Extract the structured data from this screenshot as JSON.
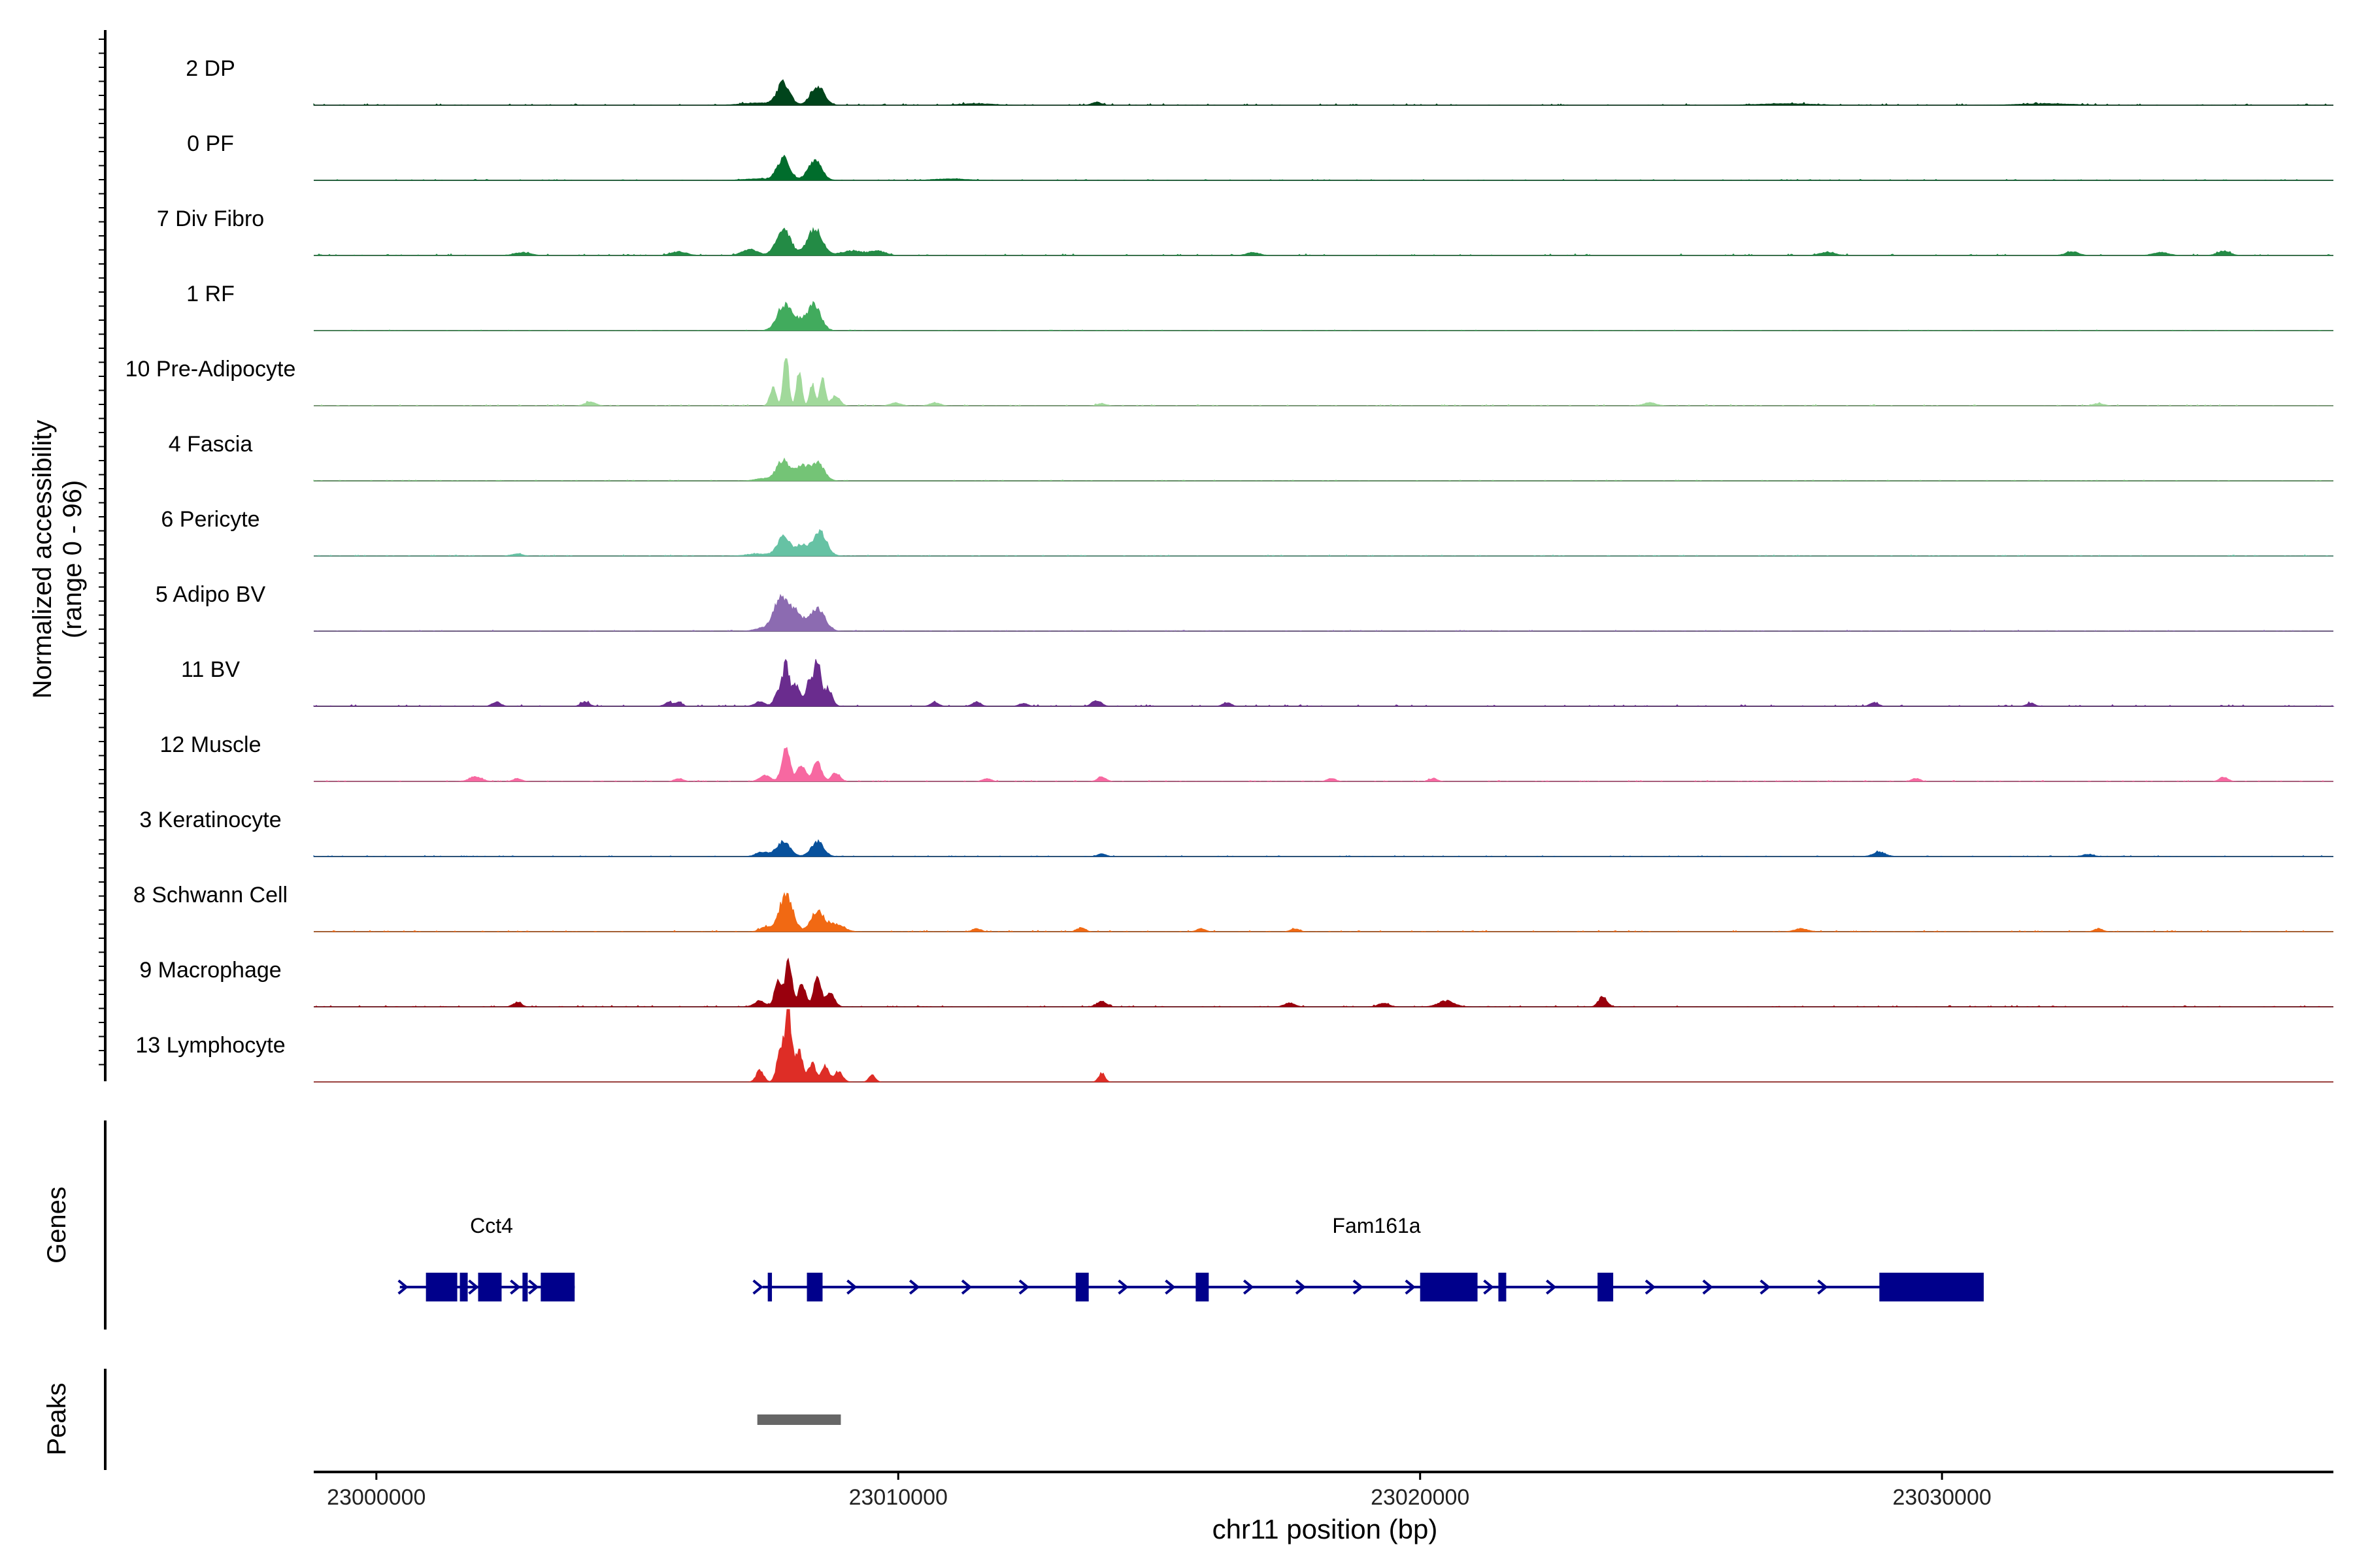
{
  "chart_data": {
    "type": "area",
    "chromosome": "chr11",
    "xlabel": "chr11 position (bp)",
    "ylabel_line1": "Normalized accessibility",
    "ylabel_line2": "(range 0 - 96)",
    "y_range": [
      0,
      96
    ],
    "x_range": [
      22998800,
      23037500
    ],
    "x_ticks": [
      23000000,
      23010000,
      23020000,
      23030000
    ],
    "x_tick_labels": [
      "23000000",
      "23010000",
      "23020000",
      "23030000"
    ],
    "grid": false,
    "tracks": [
      {
        "name": "2 DP",
        "color": "#00441b",
        "peaks": [
          [
            23007800,
            30,
            120
          ],
          [
            23008450,
            26,
            130
          ],
          [
            23007300,
            3,
            300
          ],
          [
            23013800,
            4,
            90
          ],
          [
            23011500,
            2,
            300
          ],
          [
            23027000,
            2,
            500
          ],
          [
            23032000,
            2,
            500
          ]
        ],
        "noise": 2
      },
      {
        "name": "0 PF",
        "color": "#006d2c",
        "peaks": [
          [
            23007800,
            30,
            120
          ],
          [
            23008400,
            28,
            130
          ],
          [
            23007300,
            2,
            250
          ],
          [
            23011000,
            2,
            300
          ]
        ],
        "noise": 1.2
      },
      {
        "name": "7 Div Fibro",
        "color": "#238b45",
        "peaks": [
          [
            23007800,
            34,
            140
          ],
          [
            23008400,
            36,
            140
          ],
          [
            23007150,
            8,
            150
          ],
          [
            23009600,
            6,
            150
          ],
          [
            23002800,
            4,
            150
          ],
          [
            23005800,
            5,
            150
          ],
          [
            23009100,
            6,
            200
          ],
          [
            23016800,
            4,
            120
          ],
          [
            23027800,
            4,
            150
          ],
          [
            23032500,
            5,
            120
          ],
          [
            23034200,
            4,
            150
          ],
          [
            23035400,
            6,
            120
          ]
        ],
        "noise": 2
      },
      {
        "name": "1 RF",
        "color": "#41ab5d",
        "peaks": [
          [
            23007800,
            30,
            130
          ],
          [
            23008400,
            30,
            120
          ],
          [
            23008100,
            14,
            200
          ]
        ],
        "noise": 0.8
      },
      {
        "name": "10 Pre-Adipocyte",
        "color": "#a1d99b",
        "peaks": [
          [
            23007600,
            24,
            60
          ],
          [
            23007850,
            68,
            50
          ],
          [
            23008100,
            48,
            50
          ],
          [
            23008350,
            30,
            50
          ],
          [
            23008550,
            40,
            50
          ],
          [
            23008800,
            14,
            80
          ],
          [
            23004100,
            5,
            100
          ],
          [
            23009950,
            4,
            100
          ],
          [
            23010700,
            4,
            100
          ],
          [
            23013900,
            3,
            80
          ],
          [
            23024400,
            4,
            120
          ],
          [
            23033000,
            3,
            100
          ]
        ],
        "noise": 1.5
      },
      {
        "name": "4 Fascia",
        "color": "#74c476",
        "peaks": [
          [
            23007800,
            28,
            130
          ],
          [
            23008150,
            18,
            110
          ],
          [
            23008450,
            24,
            130
          ],
          [
            23007400,
            3,
            150
          ]
        ],
        "noise": 1
      },
      {
        "name": "6 Pericyte",
        "color": "#66c2a4",
        "peaks": [
          [
            23007800,
            26,
            120
          ],
          [
            23008150,
            14,
            110
          ],
          [
            23008500,
            32,
            130
          ],
          [
            23002700,
            3,
            100
          ],
          [
            23007300,
            3,
            200
          ]
        ],
        "noise": 1.2
      },
      {
        "name": "5 Adipo BV",
        "color": "#8c6bb1",
        "peaks": [
          [
            23007750,
            46,
            130
          ],
          [
            23008050,
            24,
            120
          ],
          [
            23008450,
            32,
            140
          ],
          [
            23007400,
            4,
            150
          ]
        ],
        "noise": 1.2
      },
      {
        "name": "11 BV",
        "color": "#6a2c8e",
        "peaks": [
          [
            23007700,
            22,
            70
          ],
          [
            23007850,
            56,
            60
          ],
          [
            23008050,
            30,
            80
          ],
          [
            23008300,
            34,
            60
          ],
          [
            23008450,
            60,
            60
          ],
          [
            23008650,
            24,
            80
          ],
          [
            23007350,
            6,
            100
          ],
          [
            23002300,
            6,
            80
          ],
          [
            23004000,
            6,
            80
          ],
          [
            23005600,
            5,
            80
          ],
          [
            23005800,
            6,
            60
          ],
          [
            23010700,
            5,
            80
          ],
          [
            23011500,
            6,
            80
          ],
          [
            23012400,
            4,
            80
          ],
          [
            23013800,
            8,
            90
          ],
          [
            23016300,
            5,
            80
          ],
          [
            23028700,
            5,
            80
          ],
          [
            23031700,
            4,
            80
          ]
        ],
        "noise": 2
      },
      {
        "name": "12 Muscle",
        "color": "#f768a1",
        "peaks": [
          [
            23007850,
            44,
            80
          ],
          [
            23008150,
            22,
            80
          ],
          [
            23008450,
            26,
            80
          ],
          [
            23008800,
            12,
            80
          ],
          [
            23007450,
            8,
            100
          ],
          [
            23001900,
            6,
            120
          ],
          [
            23002700,
            4,
            80
          ],
          [
            23005800,
            4,
            80
          ],
          [
            23011700,
            4,
            80
          ],
          [
            23013900,
            6,
            80
          ],
          [
            23018300,
            4,
            80
          ],
          [
            23020250,
            4,
            80
          ],
          [
            23029500,
            4,
            80
          ],
          [
            23035400,
            6,
            80
          ]
        ],
        "noise": 1.2
      },
      {
        "name": "3 Keratinocyte",
        "color": "#08519c",
        "peaks": [
          [
            23007800,
            20,
            130
          ],
          [
            23008450,
            20,
            120
          ],
          [
            23007400,
            6,
            120
          ],
          [
            23013900,
            4,
            80
          ],
          [
            23028800,
            6,
            120
          ],
          [
            23032800,
            3,
            100
          ]
        ],
        "noise": 1.2
      },
      {
        "name": "8 Schwann Cell",
        "color": "#f16913",
        "peaks": [
          [
            23007850,
            48,
            130
          ],
          [
            23008450,
            28,
            120
          ],
          [
            23008800,
            10,
            150
          ],
          [
            23007450,
            6,
            100
          ],
          [
            23011500,
            4,
            80
          ],
          [
            23013500,
            5,
            80
          ],
          [
            23015800,
            4,
            80
          ],
          [
            23017600,
            4,
            80
          ],
          [
            23027300,
            4,
            120
          ],
          [
            23033000,
            4,
            80
          ]
        ],
        "noise": 1.5
      },
      {
        "name": "9 Macrophage",
        "color": "#99000d",
        "peaks": [
          [
            23007700,
            34,
            70
          ],
          [
            23007900,
            64,
            60
          ],
          [
            23008150,
            32,
            70
          ],
          [
            23008450,
            38,
            70
          ],
          [
            23008700,
            20,
            80
          ],
          [
            23007350,
            8,
            100
          ],
          [
            23002700,
            6,
            80
          ],
          [
            23013900,
            8,
            90
          ],
          [
            23017500,
            5,
            100
          ],
          [
            23019300,
            5,
            100
          ],
          [
            23020500,
            8,
            150
          ],
          [
            23023500,
            14,
            80
          ]
        ],
        "noise": 1.5
      },
      {
        "name": "13 Lymphocyte",
        "color": "#de2d26",
        "peaks": [
          [
            23007750,
            48,
            70
          ],
          [
            23007900,
            92,
            60
          ],
          [
            23008100,
            40,
            70
          ],
          [
            23008350,
            26,
            70
          ],
          [
            23008600,
            22,
            70
          ],
          [
            23008850,
            14,
            80
          ],
          [
            23007350,
            16,
            70
          ],
          [
            23009500,
            10,
            60
          ],
          [
            23013900,
            12,
            60
          ]
        ],
        "noise": 0
      }
    ],
    "genes_label": "Genes",
    "peaks_label": "Peaks",
    "gene_color": "#00008b",
    "genes": [
      {
        "name": "Cct4",
        "start": 23000450,
        "end": 23003800,
        "exons": [
          [
            23000950,
            23001550
          ],
          [
            23001600,
            23001750
          ],
          [
            23001950,
            23002400
          ],
          [
            23002800,
            23002900
          ],
          [
            23003150,
            23003800
          ]
        ],
        "arrows": [
          23000500,
          23001850,
          23002650,
          23003000
        ]
      },
      {
        "name": "Fam161a",
        "start": 23007400,
        "end": 23030800,
        "exons": [
          [
            23007500,
            23007580
          ],
          [
            23008250,
            23008550
          ],
          [
            23013400,
            23013650
          ],
          [
            23015700,
            23015950
          ],
          [
            23020000,
            23021100
          ],
          [
            23021500,
            23021650
          ],
          [
            23023400,
            23023700
          ],
          [
            23028800,
            23030800
          ]
        ],
        "arrows": [
          23007300,
          23009100,
          23010300,
          23011300,
          23012400,
          23014300,
          23015200,
          23016700,
          23017700,
          23018800,
          23019800,
          23021300,
          23022500,
          23024400,
          23025500,
          23026600,
          23027700
        ]
      }
    ],
    "peaks_track": [
      {
        "start": 23007300,
        "end": 23008900,
        "color": "#666666"
      }
    ]
  }
}
